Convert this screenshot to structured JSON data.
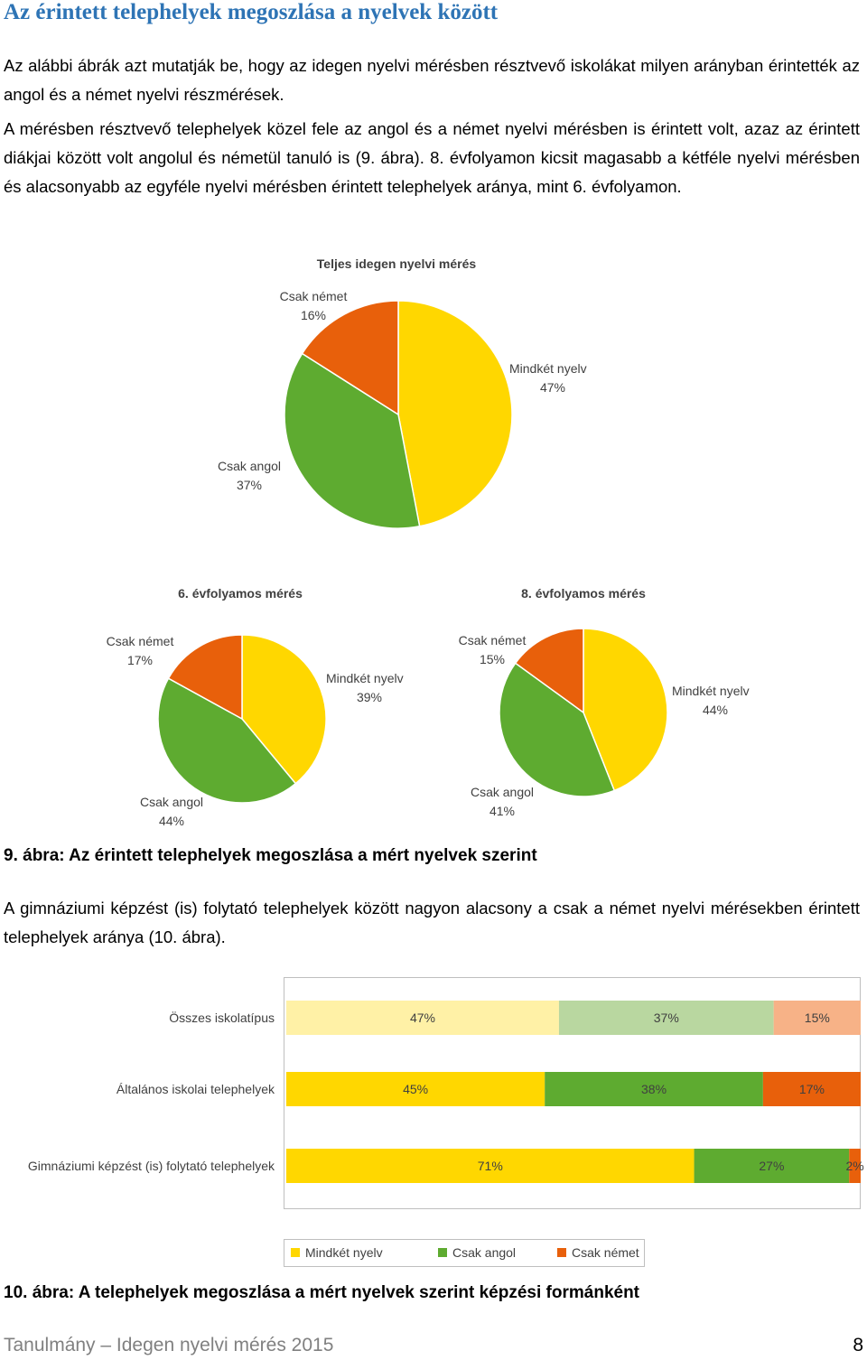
{
  "heading": "Az érintett telephelyek megoszlása a nyelvek között",
  "para1": "Az alábbi ábrák azt mutatják be, hogy az idegen nyelvi mérésben résztvevő iskolákat milyen arányban érintették az angol és a német nyelvi részmérések.",
  "para2": "A mérésben résztvevő telephelyek közel fele az angol és a német nyelvi mérésben is érintett volt, azaz az érintett diákjai között volt angolul és németül tanuló is (9. ábra). 8. évfolyamon kicsit magasabb a kétféle nyelvi mérésben és alacsonyabb az egyféle nyelvi mérésben érintett telephelyek aránya, mint 6. évfolyamon.",
  "caption9": "9. ábra: Az érintett telephelyek megoszlása a mért nyelvek szerint",
  "para3": "A gimnáziumi képzést (is) folytató telephelyek között nagyon alacsony a csak a német nyelvi mérésekben érintett telephelyek aránya (10. ábra).",
  "caption10": "10. ábra: A telephelyek megoszlása a mért nyelvek szerint képzési formánként",
  "footer": {
    "text": "Tanulmány – Idegen nyelvi mérés 2015",
    "page": "8"
  },
  "colors": {
    "yellow": "#ffd700",
    "green": "#5eab30",
    "orange": "#e8600b",
    "paleYellow": "#fff1a6",
    "paleGreen": "#b9d7a0",
    "paleOrange": "#f7b287",
    "heading": "#2e74b5"
  },
  "chart_data": [
    {
      "type": "pie",
      "title": "Teljes idegen nyelvi mérés",
      "slices": [
        {
          "name": "Mindkét nyelv",
          "value": 47,
          "label": "47%"
        },
        {
          "name": "Csak angol",
          "value": 37,
          "label": "37%"
        },
        {
          "name": "Csak német",
          "value": 16,
          "label": "16%"
        }
      ]
    },
    {
      "type": "pie",
      "title": "6. évfolyamos mérés",
      "slices": [
        {
          "name": "Mindkét nyelv",
          "value": 39,
          "label": "39%"
        },
        {
          "name": "Csak angol",
          "value": 44,
          "label": "44%"
        },
        {
          "name": "Csak német",
          "value": 17,
          "label": "17%"
        }
      ]
    },
    {
      "type": "pie",
      "title": "8. évfolyamos mérés",
      "slices": [
        {
          "name": "Mindkét nyelv",
          "value": 44,
          "label": "44%"
        },
        {
          "name": "Csak angol",
          "value": 41,
          "label": "41%"
        },
        {
          "name": "Csak német",
          "value": 15,
          "label": "15%"
        }
      ]
    },
    {
      "type": "bar",
      "orientation": "horizontal-stacked-100",
      "categories": [
        "Összes iskolatípus",
        "Általános iskolai telephelyek",
        "Gimnáziumi képzést (is) folytató telephelyek"
      ],
      "series": [
        {
          "name": "Mindkét nyelv",
          "values": [
            47,
            45,
            71
          ],
          "labels": [
            "47%",
            "45%",
            "71%"
          ]
        },
        {
          "name": "Csak angol",
          "values": [
            37,
            38,
            27
          ],
          "labels": [
            "37%",
            "38%",
            "27%"
          ]
        },
        {
          "name": "Csak német",
          "values": [
            15,
            17,
            2
          ],
          "labels": [
            "15%",
            "17%",
            "2%"
          ]
        }
      ],
      "legend": "bottom"
    }
  ]
}
